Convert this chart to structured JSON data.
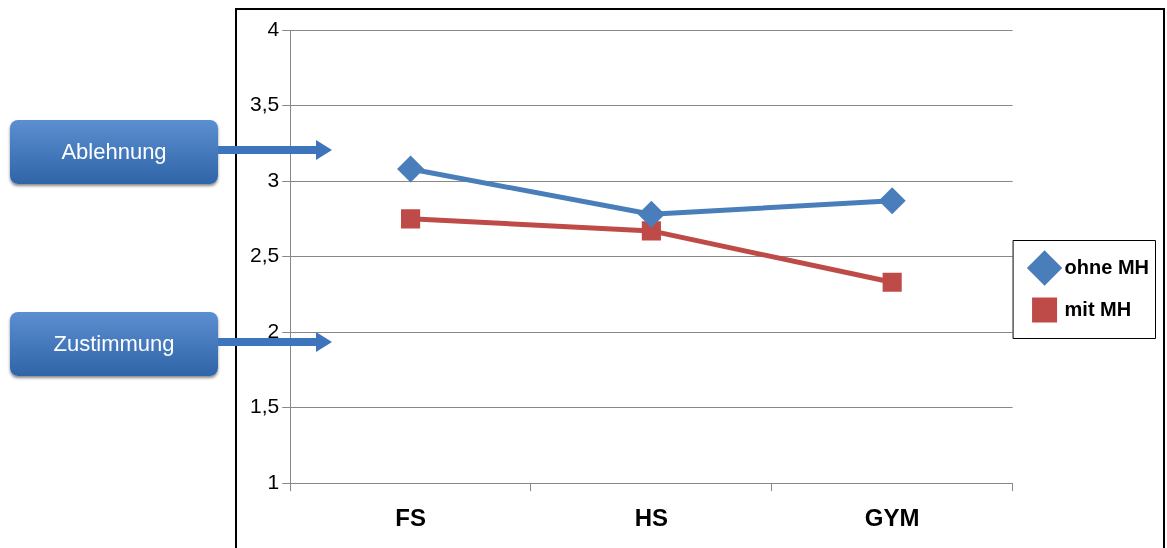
{
  "chart_data": {
    "type": "line",
    "categories": [
      "FS",
      "HS",
      "GYM"
    ],
    "series": [
      {
        "name": "ohne MH",
        "color": "#4a7ebb",
        "values": [
          3.08,
          2.78,
          2.87
        ],
        "marker": "diamond"
      },
      {
        "name": "mit MH",
        "color": "#be4b48",
        "values": [
          2.75,
          2.67,
          2.33
        ],
        "marker": "square"
      }
    ],
    "ylim": [
      1,
      4
    ],
    "yticks": [
      1,
      {
        "value": 1.5,
        "label": "1,5"
      },
      2,
      {
        "value": 2.5,
        "label": "2,5"
      },
      3,
      {
        "value": 3.5,
        "label": "3,5"
      },
      4
    ],
    "grid": "y",
    "legend": "right",
    "annotations": [
      "Ablehnung",
      "Zustimmung"
    ]
  }
}
